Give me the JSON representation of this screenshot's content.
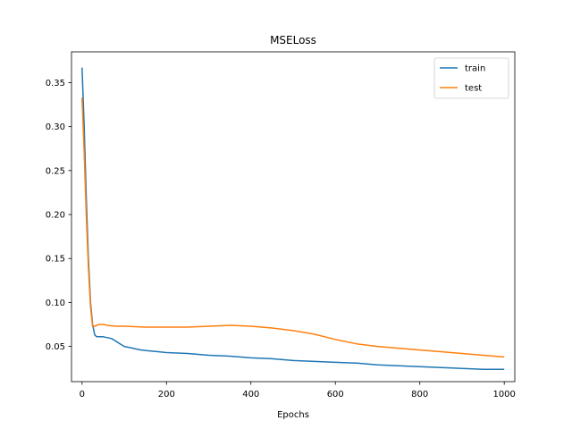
{
  "chart_data": {
    "type": "line",
    "title": "MSELoss",
    "xlabel": "Epochs",
    "ylabel": "",
    "xlim": [
      -25,
      1025
    ],
    "ylim": [
      0.01,
      0.385
    ],
    "xticks": [
      0,
      200,
      400,
      600,
      800,
      1000
    ],
    "yticks": [
      0.05,
      0.1,
      0.15,
      0.2,
      0.25,
      0.3,
      0.35
    ],
    "grid": false,
    "legend": "top-right",
    "series": [
      {
        "name": "train",
        "color": "#1f77b4",
        "x": [
          0,
          5,
          10,
          15,
          20,
          25,
          30,
          35,
          40,
          50,
          60,
          70,
          80,
          90,
          100,
          110,
          120,
          140,
          160,
          180,
          200,
          250,
          300,
          350,
          400,
          450,
          500,
          550,
          600,
          650,
          700,
          750,
          800,
          850,
          900,
          950,
          1000
        ],
        "y": [
          0.367,
          0.3,
          0.22,
          0.15,
          0.1,
          0.075,
          0.063,
          0.061,
          0.061,
          0.061,
          0.06,
          0.059,
          0.056,
          0.053,
          0.05,
          0.049,
          0.048,
          0.046,
          0.045,
          0.044,
          0.043,
          0.042,
          0.04,
          0.039,
          0.037,
          0.036,
          0.034,
          0.033,
          0.032,
          0.031,
          0.029,
          0.028,
          0.027,
          0.026,
          0.025,
          0.024,
          0.024
        ]
      },
      {
        "name": "test",
        "color": "#ff7f0e",
        "x": [
          0,
          5,
          10,
          15,
          20,
          25,
          30,
          35,
          40,
          50,
          60,
          80,
          100,
          150,
          200,
          250,
          300,
          350,
          400,
          450,
          500,
          550,
          600,
          650,
          700,
          750,
          800,
          850,
          900,
          950,
          1000
        ],
        "y": [
          0.333,
          0.27,
          0.2,
          0.14,
          0.095,
          0.073,
          0.073,
          0.074,
          0.075,
          0.075,
          0.074,
          0.073,
          0.073,
          0.072,
          0.072,
          0.072,
          0.073,
          0.074,
          0.073,
          0.071,
          0.068,
          0.064,
          0.058,
          0.053,
          0.05,
          0.048,
          0.046,
          0.044,
          0.042,
          0.04,
          0.038
        ]
      }
    ]
  }
}
